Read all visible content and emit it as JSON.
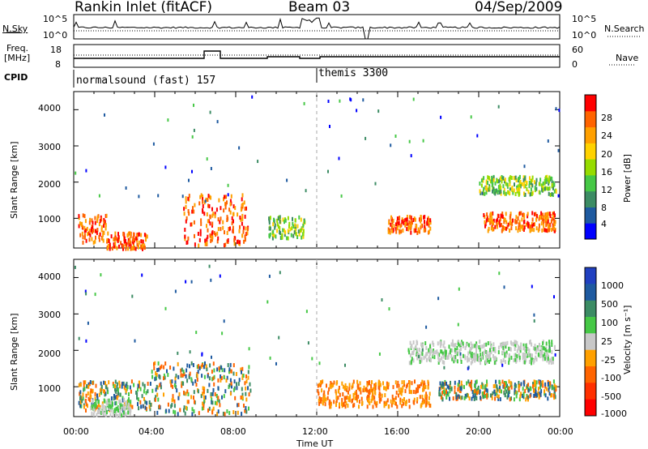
{
  "header": {
    "station": "Rankin Inlet (fitACF)",
    "beam": "Beam 03",
    "date": "04/Sep/2009"
  },
  "top_panels": {
    "nsky_label": "N.Sky",
    "nsky_ticks": [
      "10^5",
      "10^0"
    ],
    "nsearch_label": "N.Search",
    "nsearch_ticks": [
      "10^5",
      "10^0"
    ],
    "freq_label": "Freq.",
    "freq_unit": "[MHz]",
    "freq_ticks": [
      "18",
      "8"
    ],
    "nave_label": "Nave",
    "nave_ticks": [
      "60",
      "0"
    ],
    "cpid_label": "CPID",
    "cpid_modes": [
      "normalsound (fast) 157",
      "themis 3300"
    ]
  },
  "colors": {
    "scale": [
      "#ff0000",
      "#ff6400",
      "#ffa000",
      "#ffd200",
      "#96dc00",
      "#46c846",
      "#3c8c64",
      "#1e5aa0",
      "#0000ff",
      "#c8c8c8"
    ]
  },
  "chart_data": [
    {
      "type": "heatmap",
      "name": "power-panel",
      "ylabel": "Slant Range [km]",
      "xlabel": "",
      "y_ticks": [
        "1000",
        "2000",
        "3000",
        "4000"
      ],
      "x_ticks": [
        "00:00",
        "04:00",
        "08:00",
        "12:00",
        "16:00",
        "20:00",
        "00:00"
      ],
      "xlim_hours": [
        0,
        24
      ],
      "ylim_km": [
        180,
        4500
      ],
      "colorbar_label": "Power [dB]",
      "colorbar_ticks": [
        "28",
        "24",
        "20",
        "16",
        "12",
        "8",
        "4"
      ],
      "regions": [
        {
          "t": [
            0.2,
            1.6
          ],
          "r": [
            380,
            1150
          ],
          "level": "high"
        },
        {
          "t": [
            1.6,
            3.6
          ],
          "r": [
            200,
            650
          ],
          "level": "high"
        },
        {
          "t": [
            5.4,
            8.6
          ],
          "r": [
            300,
            1700
          ],
          "level": "high"
        },
        {
          "t": [
            9.6,
            11.4
          ],
          "r": [
            500,
            1100
          ],
          "level": "medium"
        },
        {
          "t": [
            15.5,
            17.6
          ],
          "r": [
            650,
            1100
          ],
          "level": "high"
        },
        {
          "t": [
            20.2,
            23.8
          ],
          "r": [
            700,
            1200
          ],
          "level": "high"
        },
        {
          "t": [
            20.0,
            23.8
          ],
          "r": [
            1700,
            2200
          ],
          "level": "medium"
        }
      ]
    },
    {
      "type": "heatmap",
      "name": "velocity-panel",
      "ylabel": "Slant Range [km]",
      "xlabel": "Time UT",
      "y_ticks": [
        "1000",
        "2000",
        "3000",
        "4000"
      ],
      "x_ticks": [
        "00:00",
        "04:00",
        "08:00",
        "12:00",
        "16:00",
        "20:00",
        "00:00"
      ],
      "xlim_hours": [
        0,
        24
      ],
      "ylim_km": [
        180,
        4500
      ],
      "colorbar_label": "Velocity [m s⁻¹]",
      "colorbar_ticks": [
        "1000",
        "500",
        "100",
        "25",
        "-25",
        "-100",
        "-500",
        "-1000"
      ],
      "regions": [
        {
          "t": [
            0.2,
            3.8
          ],
          "r": [
            400,
            1200
          ],
          "level": "mixed"
        },
        {
          "t": [
            0.8,
            2.8
          ],
          "r": [
            250,
            700
          ],
          "level": "ground"
        },
        {
          "t": [
            3.8,
            8.8
          ],
          "r": [
            300,
            1700
          ],
          "level": "mixed"
        },
        {
          "t": [
            12.0,
            17.6
          ],
          "r": [
            500,
            1200
          ],
          "level": "negative"
        },
        {
          "t": [
            16.5,
            23.8
          ],
          "r": [
            1700,
            2300
          ],
          "level": "ground"
        },
        {
          "t": [
            18.0,
            23.8
          ],
          "r": [
            700,
            1200
          ],
          "level": "mixed"
        }
      ]
    }
  ]
}
